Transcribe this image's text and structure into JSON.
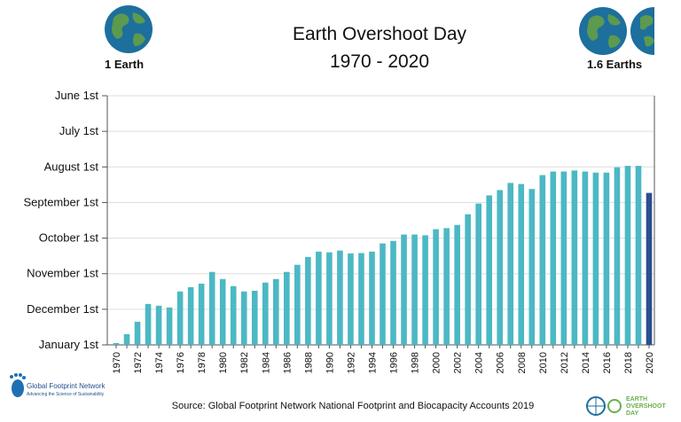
{
  "header": {
    "title_line1": "Earth Overshoot Day",
    "title_line2": "1970 - 2020",
    "left_label": "1 Earth",
    "right_label": "1.6 Earths"
  },
  "footer": {
    "source": "Source: Global Footprint Network National Footprint and Biocapacity Accounts 2019",
    "left_logo_name": "Global Footprint Network",
    "left_logo_tagline": "Advancing the Science of Sustainability",
    "right_logo_lines": [
      "EARTH",
      "OVERSHOOT",
      "DAY"
    ]
  },
  "colors": {
    "bar": "#4cb8c4",
    "highlight_bar": "#2a4f8f",
    "axis": "#555555",
    "grid": "#dddddd",
    "earth_ocean": "#1d6f9e",
    "earth_land": "#5c9a4f"
  },
  "chart_data": {
    "type": "bar",
    "y_tick_labels": [
      "June 1st",
      "July 1st",
      "August 1st",
      "September 1st",
      "October 1st",
      "November 1st",
      "December 1st",
      "January 1st"
    ],
    "y_note": "Values are the number of months before January 1st (0 = January 1st, 7 = June 1st)",
    "ylim": [
      0,
      7
    ],
    "x_tick_labels": [
      "1970",
      "1972",
      "1974",
      "1976",
      "1978",
      "1980",
      "1982",
      "1984",
      "1986",
      "1988",
      "1990",
      "1992",
      "1994",
      "1996",
      "1998",
      "2000",
      "2002",
      "2004",
      "2006",
      "2008",
      "2010",
      "2012",
      "2014",
      "2016",
      "2018",
      "2020"
    ],
    "categories": [
      1970,
      1971,
      1972,
      1973,
      1974,
      1975,
      1976,
      1977,
      1978,
      1979,
      1980,
      1981,
      1982,
      1983,
      1984,
      1985,
      1986,
      1987,
      1988,
      1989,
      1990,
      1991,
      1992,
      1993,
      1994,
      1995,
      1996,
      1997,
      1998,
      1999,
      2000,
      2001,
      2002,
      2003,
      2004,
      2005,
      2006,
      2007,
      2008,
      2009,
      2010,
      2011,
      2012,
      2013,
      2014,
      2015,
      2016,
      2017,
      2018,
      2019,
      2020
    ],
    "values": [
      0.05,
      0.3,
      0.65,
      1.15,
      1.1,
      1.05,
      1.5,
      1.62,
      1.72,
      2.05,
      1.85,
      1.65,
      1.5,
      1.52,
      1.75,
      1.85,
      2.05,
      2.25,
      2.47,
      2.62,
      2.6,
      2.65,
      2.57,
      2.58,
      2.62,
      2.85,
      2.92,
      3.1,
      3.1,
      3.08,
      3.25,
      3.28,
      3.37,
      3.67,
      3.97,
      4.2,
      4.35,
      4.55,
      4.52,
      4.38,
      4.77,
      4.87,
      4.87,
      4.9,
      4.87,
      4.84,
      4.84,
      4.99,
      5.03,
      5.03,
      4.27
    ],
    "highlight_category": 2020
  }
}
